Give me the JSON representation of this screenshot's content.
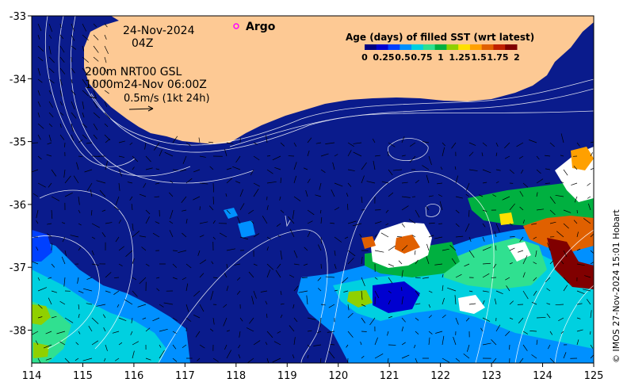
{
  "map": {
    "axes": {
      "x_ticks": [
        "114",
        "115",
        "116",
        "117",
        "118",
        "119",
        "120",
        "121",
        "122",
        "123",
        "124",
        "125"
      ],
      "y_ticks": [
        "-33",
        "-34",
        "-35",
        "-36",
        "-37",
        "-38"
      ]
    },
    "annotations": {
      "date": "24-Nov-2024",
      "time": "04Z",
      "argo_label": "Argo",
      "contour_line1": "200m   NRT00 GSL",
      "contour_line2": "1000m24-Nov 06:00Z",
      "vector_scale": "0.5m/s (1kt 24h)"
    },
    "colorbar": {
      "title": "Age (days) of filled SST (wrt latest)",
      "tick_labels": [
        "0",
        "0.25",
        "0.5",
        "0.75",
        "1",
        "1.25",
        "1.5",
        "1.75",
        "2"
      ],
      "colors": [
        "#000080",
        "#0000d0",
        "#0040ff",
        "#0090ff",
        "#00d0e0",
        "#30e090",
        "#00b040",
        "#90d000",
        "#ffe000",
        "#ffa000",
        "#e06000",
        "#c02000",
        "#800000"
      ]
    },
    "credit": "© IMOS 27-Nov-2024 15:01 Hobart",
    "colors": {
      "land": "#fdc994",
      "ocean_deep": "#0a1b8c",
      "argo_marker": "#ff00ff"
    }
  }
}
